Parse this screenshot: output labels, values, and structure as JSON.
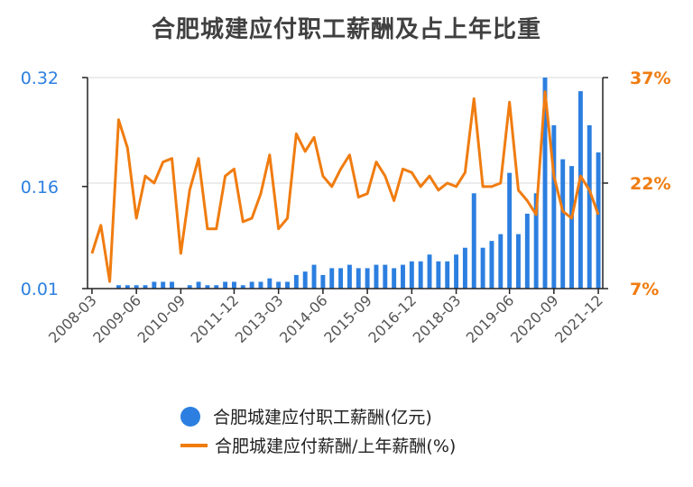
{
  "chart_data": {
    "type": "bar+line",
    "title": "合肥城建应付职工薪酬及占上年比重",
    "x_tick_labels": [
      "2008-03",
      "2009-06",
      "2010-09",
      "2011-12",
      "2013-03",
      "2014-06",
      "2015-09",
      "2016-12",
      "2018-03",
      "2019-06",
      "2020-09",
      "2021-12"
    ],
    "y_left": {
      "ticks": [
        "0.01",
        "0.16",
        "0.32"
      ],
      "range": [
        0.01,
        0.32
      ],
      "color": "#2c7fe0"
    },
    "y_right": {
      "ticks": [
        "7%",
        "22%",
        "37%"
      ],
      "range": [
        7,
        37
      ],
      "color": "#f07c10"
    },
    "series": [
      {
        "name": "合肥城建应付职工薪酬(亿元)",
        "kind": "bar",
        "color": "#2c7fe0",
        "values": [
          0.0,
          0.0,
          0.0,
          0.015,
          0.015,
          0.015,
          0.015,
          0.02,
          0.02,
          0.02,
          0.0,
          0.015,
          0.02,
          0.015,
          0.015,
          0.02,
          0.02,
          0.015,
          0.02,
          0.02,
          0.025,
          0.02,
          0.02,
          0.03,
          0.035,
          0.045,
          0.03,
          0.04,
          0.04,
          0.045,
          0.04,
          0.04,
          0.045,
          0.045,
          0.04,
          0.045,
          0.05,
          0.05,
          0.06,
          0.05,
          0.05,
          0.06,
          0.07,
          0.15,
          0.07,
          0.08,
          0.09,
          0.18,
          0.09,
          0.12,
          0.15,
          0.32,
          0.25,
          0.2,
          0.19,
          0.3,
          0.25,
          0.21
        ]
      },
      {
        "name": "合肥城建应付薪酬/上年薪酬(%)",
        "kind": "line",
        "color": "#f07c10",
        "values": [
          12,
          16,
          8,
          31,
          27,
          17,
          23,
          22,
          25,
          25.5,
          12,
          21,
          25.5,
          15.5,
          15.5,
          23,
          24,
          16.5,
          17,
          20.5,
          26,
          15.5,
          17,
          29,
          26.5,
          28.5,
          23,
          21.5,
          24,
          26,
          20,
          20.5,
          25,
          23,
          19.5,
          24,
          23.5,
          21.5,
          23,
          21,
          22,
          21.5,
          23.5,
          34,
          21.5,
          21.5,
          22,
          33.5,
          21,
          19.5,
          17.5,
          35,
          23,
          18,
          17,
          23,
          21,
          17.5
        ]
      }
    ],
    "grid": "horizontal",
    "legend_position": "bottom"
  }
}
